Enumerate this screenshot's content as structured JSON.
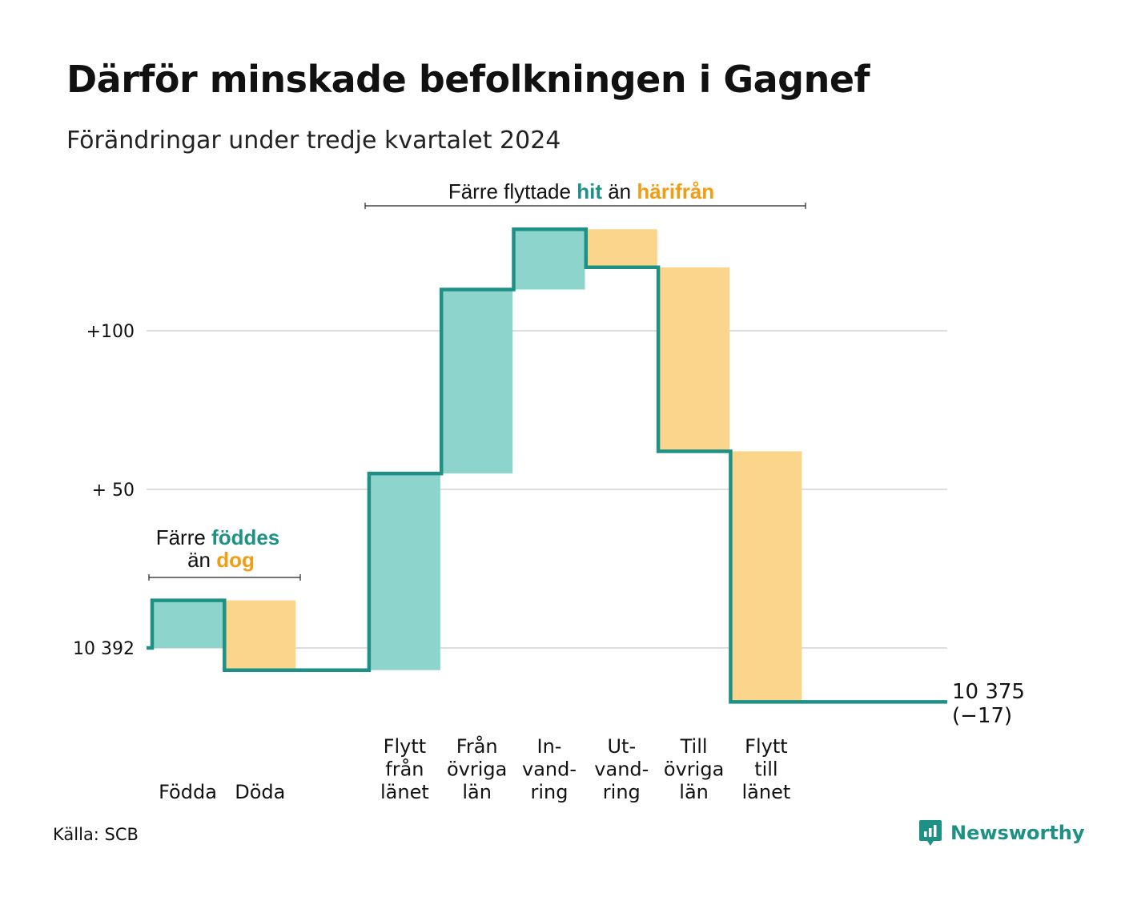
{
  "title": "Därför minskade befolkningen i Gagnef",
  "subtitle": "Förändringar under tredje kvartalet 2024",
  "source": "Källa: SCB",
  "brand": "Newsworthy",
  "colors": {
    "increase": "#8dd5cc",
    "decrease": "#fad58b",
    "line": "#1e9186",
    "accent_green": "#1e9186",
    "accent_orange": "#f39c12",
    "grid": "#dddddd"
  },
  "annotations": {
    "births": {
      "line1_pre": "Färre ",
      "line1_hl": "föddes",
      "line2_pre": "än ",
      "line2_hl": "dog"
    },
    "migration": {
      "pre": "Färre flyttade ",
      "hl1": "hit",
      "mid": " än ",
      "hl2": "härifrån"
    }
  },
  "chart_data": {
    "type": "waterfall",
    "title": "Därför minskade befolkningen i Gagnef",
    "subtitle": "Förändringar under tredje kvartalet 2024",
    "baseline": 10392,
    "final": 10375,
    "final_label": "10 375",
    "final_change_label": "(−17)",
    "y_ticks": [
      {
        "value": 0,
        "label": "10 392"
      },
      {
        "value": 50,
        "label": "+ 50"
      },
      {
        "value": 100,
        "label": "+100"
      }
    ],
    "ylim": [
      -17,
      132
    ],
    "grid": true,
    "categories": [
      {
        "label": [
          "Födda"
        ],
        "change": 15,
        "type": "increase"
      },
      {
        "label": [
          "Döda"
        ],
        "change": -22,
        "type": "decrease"
      },
      {
        "label": [],
        "change": 0,
        "type": "gap"
      },
      {
        "label": [
          "Flytt",
          "från",
          "länet"
        ],
        "change": 62,
        "type": "increase"
      },
      {
        "label": [
          "Från",
          "övriga",
          "län"
        ],
        "change": 58,
        "type": "increase"
      },
      {
        "label": [
          "In-",
          "vand-",
          "ring"
        ],
        "change": 19,
        "type": "increase"
      },
      {
        "label": [
          "Ut-",
          "vand-",
          "ring"
        ],
        "change": -12,
        "type": "decrease"
      },
      {
        "label": [
          "Till",
          "övriga",
          "län"
        ],
        "change": -58,
        "type": "decrease"
      },
      {
        "label": [
          "Flytt",
          "till",
          "länet"
        ],
        "change": -79,
        "type": "decrease"
      }
    ]
  }
}
